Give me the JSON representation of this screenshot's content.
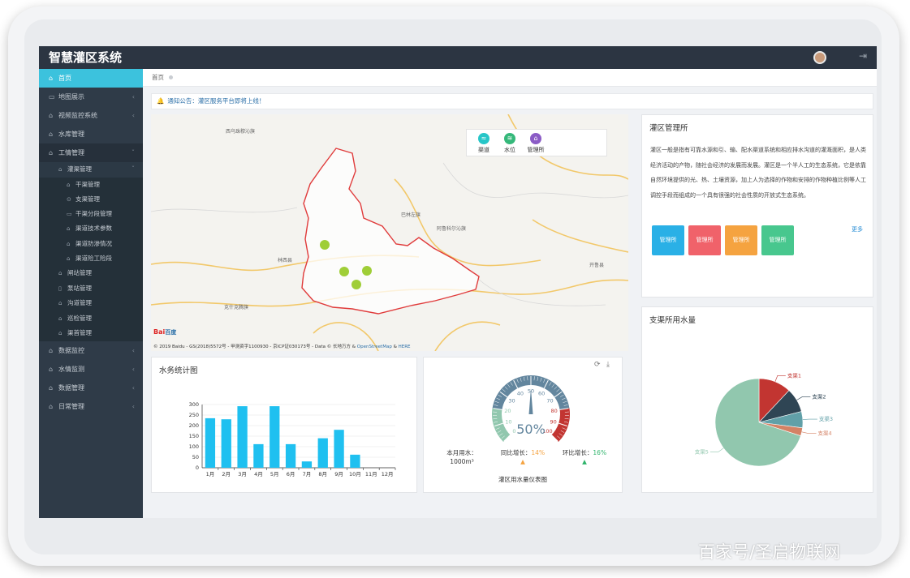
{
  "app": {
    "title": "智慧灌区系统"
  },
  "breadcrumb": {
    "home": "首页"
  },
  "sidebar": {
    "items": [
      {
        "label": "首页",
        "icon": "home-icon",
        "active": true
      },
      {
        "label": "地图展示",
        "icon": "map-icon"
      },
      {
        "label": "视频监控系统",
        "icon": "video-icon"
      },
      {
        "label": "水库管理",
        "icon": "home-icon"
      },
      {
        "label": "工情管理",
        "icon": "home-icon"
      }
    ],
    "sub_parent": {
      "label": "灌渠管理"
    },
    "sub_children": [
      {
        "label": "干渠管理",
        "icon": "canal-icon"
      },
      {
        "label": "支渠管理",
        "icon": "canal-icon"
      },
      {
        "label": "干渠分段管理",
        "icon": "monitor-icon"
      },
      {
        "label": "渠道技术参数",
        "icon": "canal-icon"
      },
      {
        "label": "渠道防渗情况",
        "icon": "canal-icon"
      },
      {
        "label": "渠道险工险段",
        "icon": "canal-icon"
      }
    ],
    "sub_siblings": [
      {
        "label": "闸站管理",
        "icon": "gate-icon"
      },
      {
        "label": "泵站管理",
        "icon": "pump-icon"
      },
      {
        "label": "沟道管理",
        "icon": "canal-icon"
      },
      {
        "label": "巡检管理",
        "icon": "canal-icon"
      },
      {
        "label": "渠首管理",
        "icon": "canal-icon"
      }
    ],
    "bottom_items": [
      {
        "label": "数据监控",
        "icon": "home-icon"
      },
      {
        "label": "水情监测",
        "icon": "home-icon"
      },
      {
        "label": "数据管理",
        "icon": "home-icon"
      },
      {
        "label": "日常管理",
        "icon": "home-icon"
      }
    ]
  },
  "notice": {
    "text": "通知公告：灌区服务平台即将上线！"
  },
  "map": {
    "legend": [
      {
        "label": "渠道",
        "color": "#27c6c8"
      },
      {
        "label": "水位",
        "color": "#35b87a"
      },
      {
        "label": "管理所",
        "color": "#8b5cc6"
      }
    ],
    "places": [
      "西乌珠穆沁旗",
      "巴林左旗",
      "阿鲁科尔沁旗",
      "林西县",
      "克什克腾旗",
      "开鲁县"
    ],
    "copyright_prefix": "© 2019 Baidu - GS(2018)5572号 - 甲测资字1100930 - 京ICP证030173号 - Data © 长地万方 &",
    "copyright_link1": "OpenStreetMap",
    "copyright_and": "&",
    "copyright_link2": "HERE",
    "baidu_logo": "Bai",
    "baidu_logo2": "百度"
  },
  "info_card": {
    "title": "灌区管理所",
    "text": "灌区一般是指有可靠水源和引、输、配水渠道系统和相应排水沟道的灌溉面积，是人类经济活动的产物，随社会经济的发展而发展。灌区是一个半人工的生态系统，它是依靠自然环境提供的光、热、土壤资源，加上人为选择的作物和安排的作物种植比例等人工调控手段而组成的一个具有很强的社会性质的开放式生态系统。",
    "buttons": [
      {
        "label": "管理所",
        "color": "#2ab0e6"
      },
      {
        "label": "管理所",
        "color": "#f0626a"
      },
      {
        "label": "管理所",
        "color": "#f5a340"
      },
      {
        "label": "管理所",
        "color": "#48c78e"
      }
    ],
    "more": "更多"
  },
  "bar_card": {
    "title": "水务统计图"
  },
  "chart_data": [
    {
      "type": "bar",
      "title": "水务统计图",
      "categories": [
        "1月",
        "2月",
        "3月",
        "4月",
        "5月",
        "6月",
        "7月",
        "8月",
        "9月",
        "10月",
        "11月",
        "12月"
      ],
      "values": [
        235,
        230,
        292,
        112,
        292,
        112,
        30,
        140,
        180,
        62,
        0,
        0
      ],
      "ylim": [
        0,
        300
      ],
      "yticks": [
        0,
        50,
        100,
        150,
        200,
        250,
        300
      ],
      "color": "#1fc0f0"
    },
    {
      "type": "pie",
      "title": "支渠所用水量",
      "labels": [
        "支渠1",
        "支渠2",
        "支渠3",
        "支渠4",
        "支渠5"
      ],
      "values": [
        12,
        9,
        6,
        3,
        70
      ],
      "colors": [
        "#c23531",
        "#2f4554",
        "#61a0a8",
        "#d48265",
        "#91c7ae"
      ]
    }
  ],
  "gauge_card": {
    "value_text": "50%",
    "value": 50,
    "ticks": [
      "0",
      "10",
      "20",
      "30",
      "40",
      "50",
      "60",
      "70",
      "80",
      "90",
      "100"
    ],
    "monthly_label": "本月用水：",
    "monthly_value": "1000m³",
    "yoy_label": "同比增长：",
    "yoy_value": "14%",
    "mom_label": "环比增长：",
    "mom_value": "16%",
    "caption": "灌区用水量仪表图",
    "colors": {
      "up_orange": "#f5a340",
      "up_green": "#2db36a"
    }
  },
  "pie_card": {
    "title": "支渠所用水量"
  },
  "watermark": "百家号/圣启物联网"
}
